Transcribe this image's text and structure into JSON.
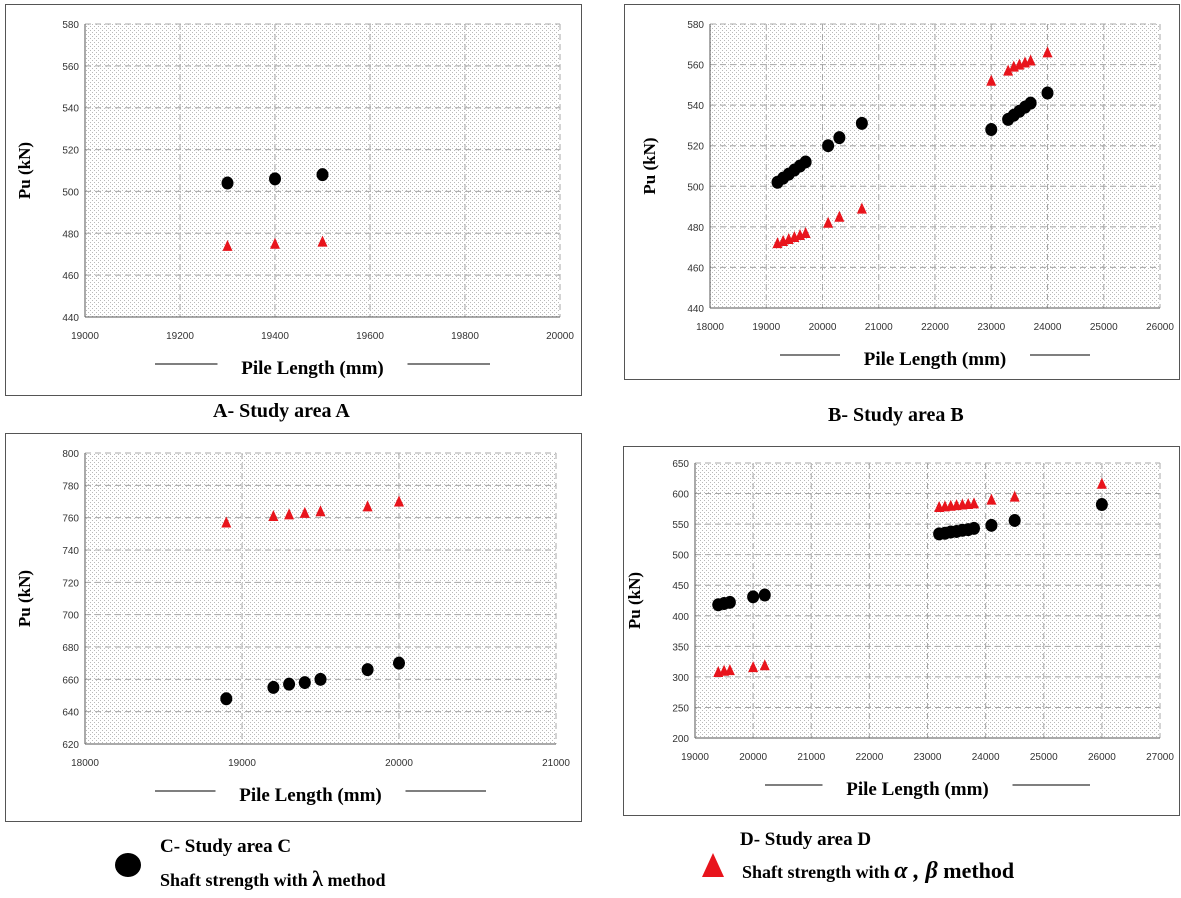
{
  "chart_data": [
    {
      "type": "scatter",
      "caption": "A- Study area A",
      "xlabel": "Pile Length (mm)",
      "ylabel": "Pu (kN)",
      "xlim": [
        19000,
        20000
      ],
      "ylim": [
        440,
        580
      ],
      "xticks": [
        19000,
        19200,
        19400,
        19600,
        19800,
        20000
      ],
      "yticks": [
        440,
        460,
        480,
        500,
        520,
        540,
        560,
        580
      ],
      "grid": true,
      "series": [
        {
          "marker": "circle",
          "color": "#000000",
          "points": [
            [
              19300,
              504
            ],
            [
              19400,
              506
            ],
            [
              19500,
              508
            ]
          ]
        },
        {
          "marker": "triangle",
          "color": "#e8141c",
          "points": [
            [
              19300,
              474
            ],
            [
              19400,
              475
            ],
            [
              19500,
              476
            ]
          ]
        }
      ]
    },
    {
      "type": "scatter",
      "caption": "B- Study area B",
      "xlabel": "Pile Length (mm)",
      "ylabel": "Pu (kN)",
      "xlim": [
        18000,
        26000
      ],
      "ylim": [
        440,
        580
      ],
      "xticks": [
        18000,
        19000,
        20000,
        21000,
        22000,
        23000,
        24000,
        25000,
        26000
      ],
      "yticks": [
        440,
        460,
        480,
        500,
        520,
        540,
        560,
        580
      ],
      "grid": true,
      "series": [
        {
          "marker": "circle",
          "color": "#000000",
          "points": [
            [
              19200,
              502
            ],
            [
              19300,
              504
            ],
            [
              19400,
              506
            ],
            [
              19500,
              508
            ],
            [
              19600,
              510
            ],
            [
              19700,
              512
            ],
            [
              20100,
              520
            ],
            [
              20300,
              524
            ],
            [
              20700,
              531
            ],
            [
              23000,
              528
            ],
            [
              23300,
              533
            ],
            [
              23400,
              535
            ],
            [
              23500,
              537
            ],
            [
              23600,
              539
            ],
            [
              23700,
              541
            ],
            [
              24000,
              546
            ]
          ]
        },
        {
          "marker": "triangle",
          "color": "#e8141c",
          "points": [
            [
              19200,
              472
            ],
            [
              19300,
              473
            ],
            [
              19400,
              474
            ],
            [
              19500,
              475
            ],
            [
              19600,
              476
            ],
            [
              19700,
              477
            ],
            [
              20100,
              482
            ],
            [
              20300,
              485
            ],
            [
              20700,
              489
            ],
            [
              23000,
              552
            ],
            [
              23300,
              557
            ],
            [
              23400,
              559
            ],
            [
              23500,
              560
            ],
            [
              23600,
              561
            ],
            [
              23700,
              562
            ],
            [
              24000,
              566
            ]
          ]
        }
      ]
    },
    {
      "type": "scatter",
      "caption": "C- Study  area C",
      "xlabel": "Pile Length (mm)",
      "ylabel": "Pu (kN)",
      "xlim": [
        18000,
        21000
      ],
      "ylim": [
        620,
        800
      ],
      "xticks": [
        18000,
        19000,
        20000,
        21000
      ],
      "yticks": [
        620,
        640,
        660,
        680,
        700,
        720,
        740,
        760,
        780,
        800
      ],
      "grid": true,
      "series": [
        {
          "marker": "circle",
          "color": "#000000",
          "points": [
            [
              18900,
              648
            ],
            [
              19200,
              655
            ],
            [
              19300,
              657
            ],
            [
              19400,
              658
            ],
            [
              19500,
              660
            ],
            [
              19800,
              666
            ],
            [
              20000,
              670
            ]
          ]
        },
        {
          "marker": "triangle",
          "color": "#e8141c",
          "points": [
            [
              18900,
              757
            ],
            [
              19200,
              761
            ],
            [
              19300,
              762
            ],
            [
              19400,
              763
            ],
            [
              19500,
              764
            ],
            [
              19800,
              767
            ],
            [
              20000,
              770
            ]
          ]
        }
      ]
    },
    {
      "type": "scatter",
      "caption": "D- Study  area D",
      "xlabel": "Pile Length (mm)",
      "ylabel": "Pu (kN)",
      "xlim": [
        19000,
        27000
      ],
      "ylim": [
        200,
        650
      ],
      "xticks": [
        19000,
        20000,
        21000,
        22000,
        23000,
        24000,
        25000,
        26000,
        27000
      ],
      "yticks": [
        200,
        250,
        300,
        350,
        400,
        450,
        500,
        550,
        600,
        650
      ],
      "grid": true,
      "series": [
        {
          "marker": "circle",
          "color": "#000000",
          "points": [
            [
              19400,
              418
            ],
            [
              19500,
              420
            ],
            [
              19600,
              422
            ],
            [
              20000,
              431
            ],
            [
              20200,
              434
            ],
            [
              23200,
              534
            ],
            [
              23300,
              535
            ],
            [
              23400,
              537
            ],
            [
              23500,
              538
            ],
            [
              23600,
              540
            ],
            [
              23700,
              541
            ],
            [
              23800,
              543
            ],
            [
              24100,
              548
            ],
            [
              24500,
              556
            ],
            [
              26000,
              582
            ]
          ]
        },
        {
          "marker": "triangle",
          "color": "#e8141c",
          "points": [
            [
              19400,
              308
            ],
            [
              19500,
              310
            ],
            [
              19600,
              311
            ],
            [
              20000,
              316
            ],
            [
              20200,
              319
            ],
            [
              23200,
              578
            ],
            [
              23300,
              579
            ],
            [
              23400,
              580
            ],
            [
              23500,
              581
            ],
            [
              23600,
              582
            ],
            [
              23700,
              583
            ],
            [
              23800,
              584
            ],
            [
              24100,
              590
            ],
            [
              24500,
              595
            ],
            [
              26000,
              616
            ]
          ]
        }
      ]
    }
  ],
  "legend": {
    "lambda": {
      "prefix": "Shaft strength with ",
      "symbol": "λ",
      "suffix": " method",
      "marker": "circle",
      "color": "#000000"
    },
    "alpha_beta": {
      "prefix": "Shaft strength with ",
      "symbol": "α , β",
      "suffix": " method",
      "marker": "triangle",
      "color": "#e8141c"
    }
  }
}
